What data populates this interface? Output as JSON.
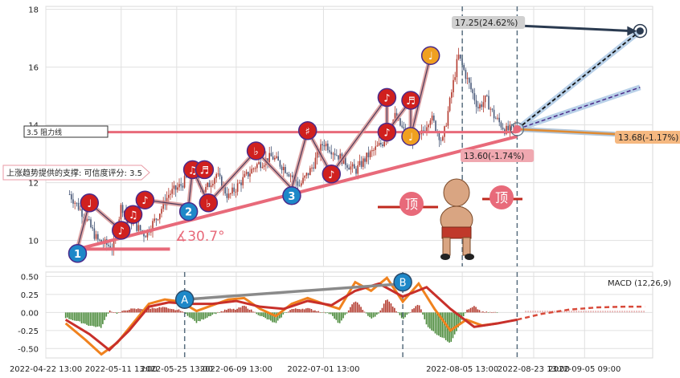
{
  "chart_data": [
    {
      "type": "candlestick",
      "panel": "price",
      "yticks": [
        10,
        12,
        14,
        16,
        18
      ],
      "ylim": [
        9.1,
        18.1
      ],
      "xlim": [
        "2022-04-22 13:00",
        "2022-09-22 13:00"
      ],
      "xticks": [
        "2022-04-22 13:00",
        "2022-05-11 13:00",
        "2022-05-25 13:00",
        "2022-06-09 13:00",
        "2022-07-01 13:00",
        "2022-08-05 13:00",
        "2022-08-23 13:00",
        "2022-09-05 09:00"
      ],
      "vlines": [
        "2022-08-05 13:00",
        "2022-08-19 09:00"
      ],
      "price_path": [
        [
          "2022-04-28 13:00",
          11.6
        ],
        [
          "2022-05-02 13:00",
          10.8
        ],
        [
          "2022-05-05 13:00",
          10.0
        ],
        [
          "2022-05-09 13:00",
          9.75
        ],
        [
          "2022-05-11 13:00",
          11.2
        ],
        [
          "2022-05-14 13:00",
          10.6
        ],
        [
          "2022-05-17 13:00",
          10.2
        ],
        [
          "2022-05-20 13:00",
          10.8
        ],
        [
          "2022-05-23 13:00",
          11.6
        ],
        [
          "2022-05-26 13:00",
          11.9
        ],
        [
          "2022-05-29 13:00",
          12.4
        ],
        [
          "2022-06-01 13:00",
          11.7
        ],
        [
          "2022-06-04 13:00",
          12.3
        ],
        [
          "2022-06-07 13:00",
          11.5
        ],
        [
          "2022-06-10 13:00",
          12.0
        ],
        [
          "2022-06-14 13:00",
          12.6
        ],
        [
          "2022-06-18 13:00",
          12.9
        ],
        [
          "2022-06-22 13:00",
          12.4
        ],
        [
          "2022-06-25 13:00",
          11.9
        ],
        [
          "2022-06-28 13:00",
          12.5
        ],
        [
          "2022-07-01 13:00",
          13.4
        ],
        [
          "2022-07-05 13:00",
          12.9
        ],
        [
          "2022-07-09 13:00",
          12.4
        ],
        [
          "2022-07-12 13:00",
          12.9
        ],
        [
          "2022-07-16 13:00",
          13.4
        ],
        [
          "2022-07-19 13:00",
          14.3
        ],
        [
          "2022-07-22 13:00",
          13.6
        ],
        [
          "2022-07-25 13:00",
          13.5
        ],
        [
          "2022-07-28 13:00",
          14.3
        ],
        [
          "2022-07-31 13:00",
          13.4
        ],
        [
          "2022-08-02 13:00",
          14.9
        ],
        [
          "2022-08-04 13:00",
          16.4
        ],
        [
          "2022-08-07 13:00",
          15.3
        ],
        [
          "2022-08-09 13:00",
          14.6
        ],
        [
          "2022-08-11 13:00",
          14.9
        ],
        [
          "2022-08-13 13:00",
          14.3
        ],
        [
          "2022-08-16 13:00",
          13.8
        ],
        [
          "2022-08-19 09:00",
          13.9
        ]
      ],
      "wave_markers": [
        {
          "label": "1",
          "x": "2022-04-30 13:00",
          "y": 9.55,
          "color": "#1e88c8"
        },
        {
          "label": "♩",
          "x": "2022-05-03 13:00",
          "y": 11.3,
          "color": "#d0201e"
        },
        {
          "label": "♪",
          "x": "2022-05-11 13:00",
          "y": 10.35,
          "color": "#d0201e"
        },
        {
          "label": "♫",
          "x": "2022-05-14 13:00",
          "y": 10.9,
          "color": "#d0201e"
        },
        {
          "label": "♪",
          "x": "2022-05-17 13:00",
          "y": 11.4,
          "color": "#d0201e"
        },
        {
          "label": "2",
          "x": "2022-05-28 13:00",
          "y": 11.0,
          "color": "#1e88c8"
        },
        {
          "label": "♫",
          "x": "2022-05-29 13:00",
          "y": 12.45,
          "color": "#d0201e"
        },
        {
          "label": "♬",
          "x": "2022-06-01 13:00",
          "y": 12.45,
          "color": "#d0201e"
        },
        {
          "label": "♭",
          "x": "2022-06-02 13:00",
          "y": 11.3,
          "color": "#d0201e"
        },
        {
          "label": "♭",
          "x": "2022-06-14 13:00",
          "y": 13.1,
          "color": "#d0201e"
        },
        {
          "label": "3",
          "x": "2022-06-23 13:00",
          "y": 11.55,
          "color": "#1e88c8"
        },
        {
          "label": "♯",
          "x": "2022-06-27 13:00",
          "y": 13.8,
          "color": "#d0201e"
        },
        {
          "label": "♪",
          "x": "2022-07-03 13:00",
          "y": 12.3,
          "color": "#d0201e"
        },
        {
          "label": "♪",
          "x": "2022-07-17 13:00",
          "y": 14.95,
          "color": "#d0201e"
        },
        {
          "label": "♪",
          "x": "2022-07-17 13:00",
          "y": 13.75,
          "color": "#d0201e"
        },
        {
          "label": "♬",
          "x": "2022-07-23 13:00",
          "y": 14.85,
          "color": "#d0201e"
        },
        {
          "label": "♩",
          "x": "2022-07-23 13:00",
          "y": 13.6,
          "color": "#f0a020"
        },
        {
          "label": "♩",
          "x": "2022-07-28 13:00",
          "y": 16.4,
          "color": "#f0a020"
        }
      ],
      "support_line": {
        "from": [
          "2022-04-30 13:00",
          9.7
        ],
        "to": [
          "2022-08-19 09:00",
          13.6
        ],
        "color": "#e86a7a"
      },
      "resistance_line": {
        "y": 13.75,
        "from": "2022-04-22 13:00",
        "to": "2022-08-19 09:00",
        "color": "#e86a7a"
      },
      "projection_lines": [
        {
          "from": [
            "2022-08-19 09:00",
            13.85
          ],
          "to": [
            "2022-09-19 09:00",
            17.25
          ],
          "style": "dashed-black"
        },
        {
          "from": [
            "2022-08-19 09:00",
            13.85
          ],
          "to": [
            "2022-09-19 09:00",
            15.3
          ],
          "style": "dashed-purple"
        },
        {
          "from": [
            "2022-08-19 09:00",
            13.85
          ],
          "to": [
            "2022-09-19 09:00",
            17.25
          ],
          "style": "arrow-navy"
        },
        {
          "from": [
            "2022-08-19 09:00",
            13.85
          ],
          "to": [
            "2022-09-19 09:00",
            13.68
          ],
          "style": "orange"
        }
      ],
      "angle_label": "∡30.7°",
      "annotations": {
        "target_high": "17.25(24.62%)",
        "target_mid": "13.68(-1.17%)",
        "target_low": "13.60(-1.74%)",
        "resistance_box": "3.5 阻力线",
        "support_text": "上涨趋势提供的支撑: 可信度评分: 3.5",
        "top_left": "顶",
        "top_right": "顶"
      }
    },
    {
      "type": "macd",
      "panel": "macd",
      "title": "MACD (12,26,9)",
      "yticks": [
        0.5,
        0.25,
        0.0,
        -0.25,
        -0.5
      ],
      "ylim": [
        -0.63,
        0.56
      ],
      "macd_line": [
        [
          "2022-04-27 13:00",
          -0.15
        ],
        [
          "2022-05-02 13:00",
          -0.38
        ],
        [
          "2022-05-06 13:00",
          -0.58
        ],
        [
          "2022-05-10 13:00",
          -0.42
        ],
        [
          "2022-05-14 13:00",
          -0.15
        ],
        [
          "2022-05-18 13:00",
          0.12
        ],
        [
          "2022-05-22 13:00",
          0.18
        ],
        [
          "2022-05-26 13:00",
          0.15
        ],
        [
          "2022-05-30 13:00",
          0.02
        ],
        [
          "2022-06-03 13:00",
          0.1
        ],
        [
          "2022-06-07 13:00",
          0.18
        ],
        [
          "2022-06-11 13:00",
          0.2
        ],
        [
          "2022-06-15 13:00",
          0.05
        ],
        [
          "2022-06-19 13:00",
          -0.05
        ],
        [
          "2022-06-23 13:00",
          0.12
        ],
        [
          "2022-06-27 13:00",
          0.2
        ],
        [
          "2022-07-01 13:00",
          0.12
        ],
        [
          "2022-07-05 13:00",
          0.05
        ],
        [
          "2022-07-09 13:00",
          0.42
        ],
        [
          "2022-07-13 13:00",
          0.3
        ],
        [
          "2022-07-17 13:00",
          0.48
        ],
        [
          "2022-07-21 13:00",
          0.15
        ],
        [
          "2022-07-25 13:00",
          0.4
        ],
        [
          "2022-07-29 13:00",
          0.05
        ],
        [
          "2022-08-02 13:00",
          -0.25
        ],
        [
          "2022-08-06 13:00",
          -0.1
        ],
        [
          "2022-08-10 13:00",
          -0.18
        ],
        [
          "2022-08-14 13:00",
          -0.15
        ]
      ],
      "signal_line": [
        [
          "2022-04-27 13:00",
          -0.1
        ],
        [
          "2022-05-03 13:00",
          -0.3
        ],
        [
          "2022-05-08 13:00",
          -0.52
        ],
        [
          "2022-05-13 13:00",
          -0.25
        ],
        [
          "2022-05-18 13:00",
          0.08
        ],
        [
          "2022-05-23 13:00",
          0.14
        ],
        [
          "2022-05-28 13:00",
          0.12
        ],
        [
          "2022-06-03 13:00",
          0.12
        ],
        [
          "2022-06-09 13:00",
          0.16
        ],
        [
          "2022-06-15 13:00",
          0.08
        ],
        [
          "2022-06-21 13:00",
          0.05
        ],
        [
          "2022-06-27 13:00",
          0.16
        ],
        [
          "2022-07-03 13:00",
          0.1
        ],
        [
          "2022-07-09 13:00",
          0.3
        ],
        [
          "2022-07-15 13:00",
          0.4
        ],
        [
          "2022-07-21 13:00",
          0.22
        ],
        [
          "2022-07-27 13:00",
          0.35
        ],
        [
          "2022-08-02 13:00",
          0.05
        ],
        [
          "2022-08-08 13:00",
          -0.2
        ],
        [
          "2022-08-14 13:00",
          -0.15
        ],
        [
          "2022-08-19 09:00",
          -0.1
        ],
        [
          "2022-08-25 13:00",
          -0.02
        ],
        [
          "2022-09-01 13:00",
          0.04
        ],
        [
          "2022-09-08 13:00",
          0.07
        ],
        [
          "2022-09-15 13:00",
          0.08
        ],
        [
          "2022-09-20 13:00",
          0.08
        ]
      ],
      "divergence_markers": [
        {
          "label": "A",
          "x": "2022-05-27 13:00",
          "y": 0.18
        },
        {
          "label": "B",
          "x": "2022-07-21 13:00",
          "y": 0.42
        }
      ],
      "vlines": [
        "2022-05-27 13:00",
        "2022-07-21 13:00",
        "2022-08-19 09:00"
      ]
    }
  ],
  "colors": {
    "up": "#b33a2e",
    "down": "#4a5a7a",
    "hist_pos": "#b33a2e",
    "hist_neg": "#4a8a3a",
    "accent": "#e86a7a"
  }
}
